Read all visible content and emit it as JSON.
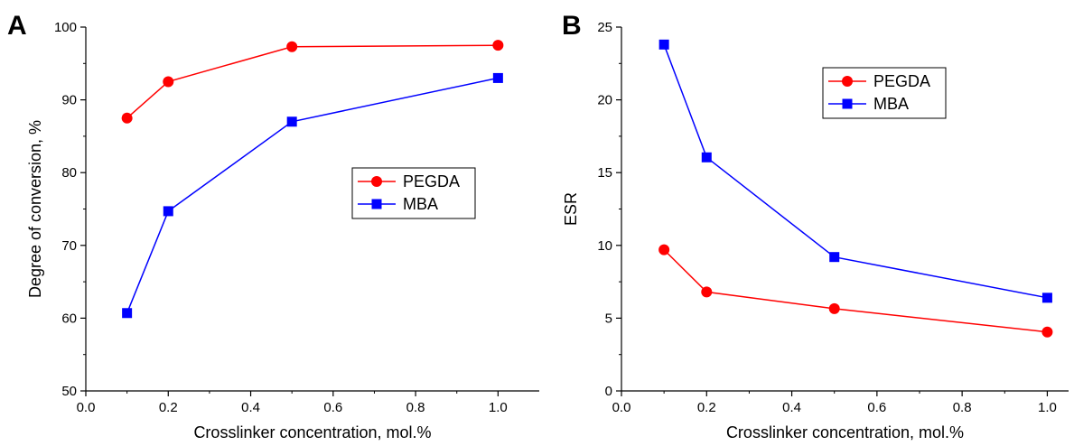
{
  "chart_data": [
    {
      "panel": "A",
      "type": "line",
      "xlabel": "Crosslinker concentration, mol.%",
      "ylabel": "Degree of conversion, %",
      "xlim": [
        0.0,
        1.1
      ],
      "ylim": [
        50,
        100
      ],
      "xticks": [
        "0.0",
        "0.2",
        "0.4",
        "0.6",
        "0.8",
        "1.0"
      ],
      "yticks": [
        "50",
        "60",
        "70",
        "80",
        "90",
        "100"
      ],
      "legend_position": "center-right",
      "x": [
        0.1,
        0.2,
        0.5,
        1.0
      ],
      "series": [
        {
          "name": "PEGDA",
          "color": "#ff0000",
          "marker": "circle",
          "values": [
            87.5,
            92.5,
            97.3,
            97.5
          ]
        },
        {
          "name": "MBA",
          "color": "#0000ff",
          "marker": "square",
          "values": [
            60.7,
            74.7,
            87.0,
            93.0
          ]
        }
      ]
    },
    {
      "panel": "B",
      "type": "line",
      "xlabel": "Crosslinker concentration, mol.%",
      "ylabel": "ESR",
      "xlim": [
        0.0,
        1.05
      ],
      "ylim": [
        0,
        25
      ],
      "xticks": [
        "0.0",
        "0.2",
        "0.4",
        "0.6",
        "0.8",
        "1.0"
      ],
      "yticks": [
        "0",
        "5",
        "10",
        "15",
        "20",
        "25"
      ],
      "legend_position": "top-center",
      "x": [
        0.1,
        0.2,
        0.5,
        1.0
      ],
      "series": [
        {
          "name": "PEGDA",
          "color": "#ff0000",
          "marker": "circle",
          "values": [
            9.7,
            6.8,
            5.65,
            4.05
          ]
        },
        {
          "name": "MBA",
          "color": "#0000ff",
          "marker": "square",
          "values": [
            23.8,
            16.05,
            9.2,
            6.4
          ]
        }
      ]
    }
  ]
}
